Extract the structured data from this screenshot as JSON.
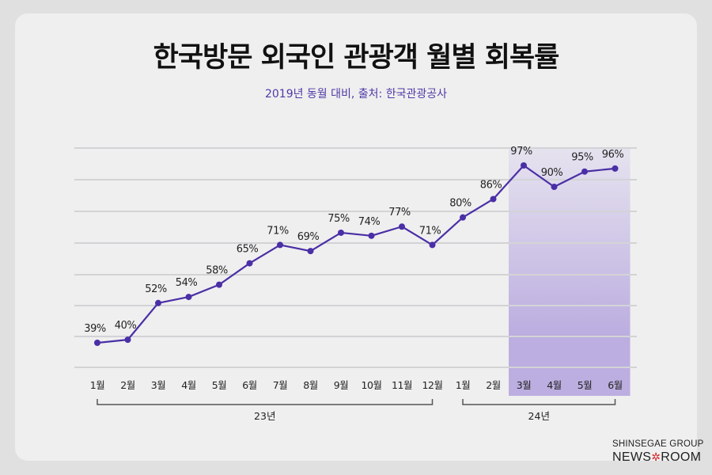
{
  "header": {
    "title": "한국방문 외국인 관광객 월별 회복률",
    "subtitle": "2019년 동월 대비, 출처: 한국관광공사"
  },
  "logo": {
    "line1": "SHINSEGAE GROUP",
    "line2_left": "NEWS",
    "line2_right": "ROOM",
    "star": "✲"
  },
  "colors": {
    "line": "#4a2fa6",
    "highlight_top": "#e6e3ef",
    "highlight_bottom": "#bcaee0",
    "grid": "#d3d3d6",
    "bracket": "#555555"
  },
  "chart_data": {
    "type": "line",
    "title": "한국방문 외국인 관광객 월별 회복률",
    "subtitle": "2019년 동월 대비, 출처: 한국관광공사",
    "categories": [
      "1월",
      "2월",
      "3월",
      "4월",
      "5월",
      "6월",
      "7월",
      "8월",
      "9월",
      "10월",
      "11월",
      "12월",
      "1월",
      "2월",
      "3월",
      "4월",
      "5월",
      "6월"
    ],
    "groups": [
      {
        "label": "23년",
        "from": 0,
        "to": 11
      },
      {
        "label": "24년",
        "from": 12,
        "to": 17
      }
    ],
    "series": [
      {
        "name": "회복률",
        "values": [
          39,
          40,
          52,
          54,
          58,
          65,
          71,
          69,
          75,
          74,
          77,
          71,
          80,
          86,
          97,
          90,
          95,
          96
        ]
      }
    ],
    "data_labels": [
      "39%",
      "40%",
      "52%",
      "54%",
      "58%",
      "65%",
      "71%",
      "69%",
      "75%",
      "74%",
      "77%",
      "71%",
      "80%",
      "86%",
      "97%",
      "90%",
      "95%",
      "96%"
    ],
    "highlight_range": {
      "from": 14,
      "to": 17
    },
    "grid": true,
    "ylim": [
      30,
      100
    ]
  }
}
